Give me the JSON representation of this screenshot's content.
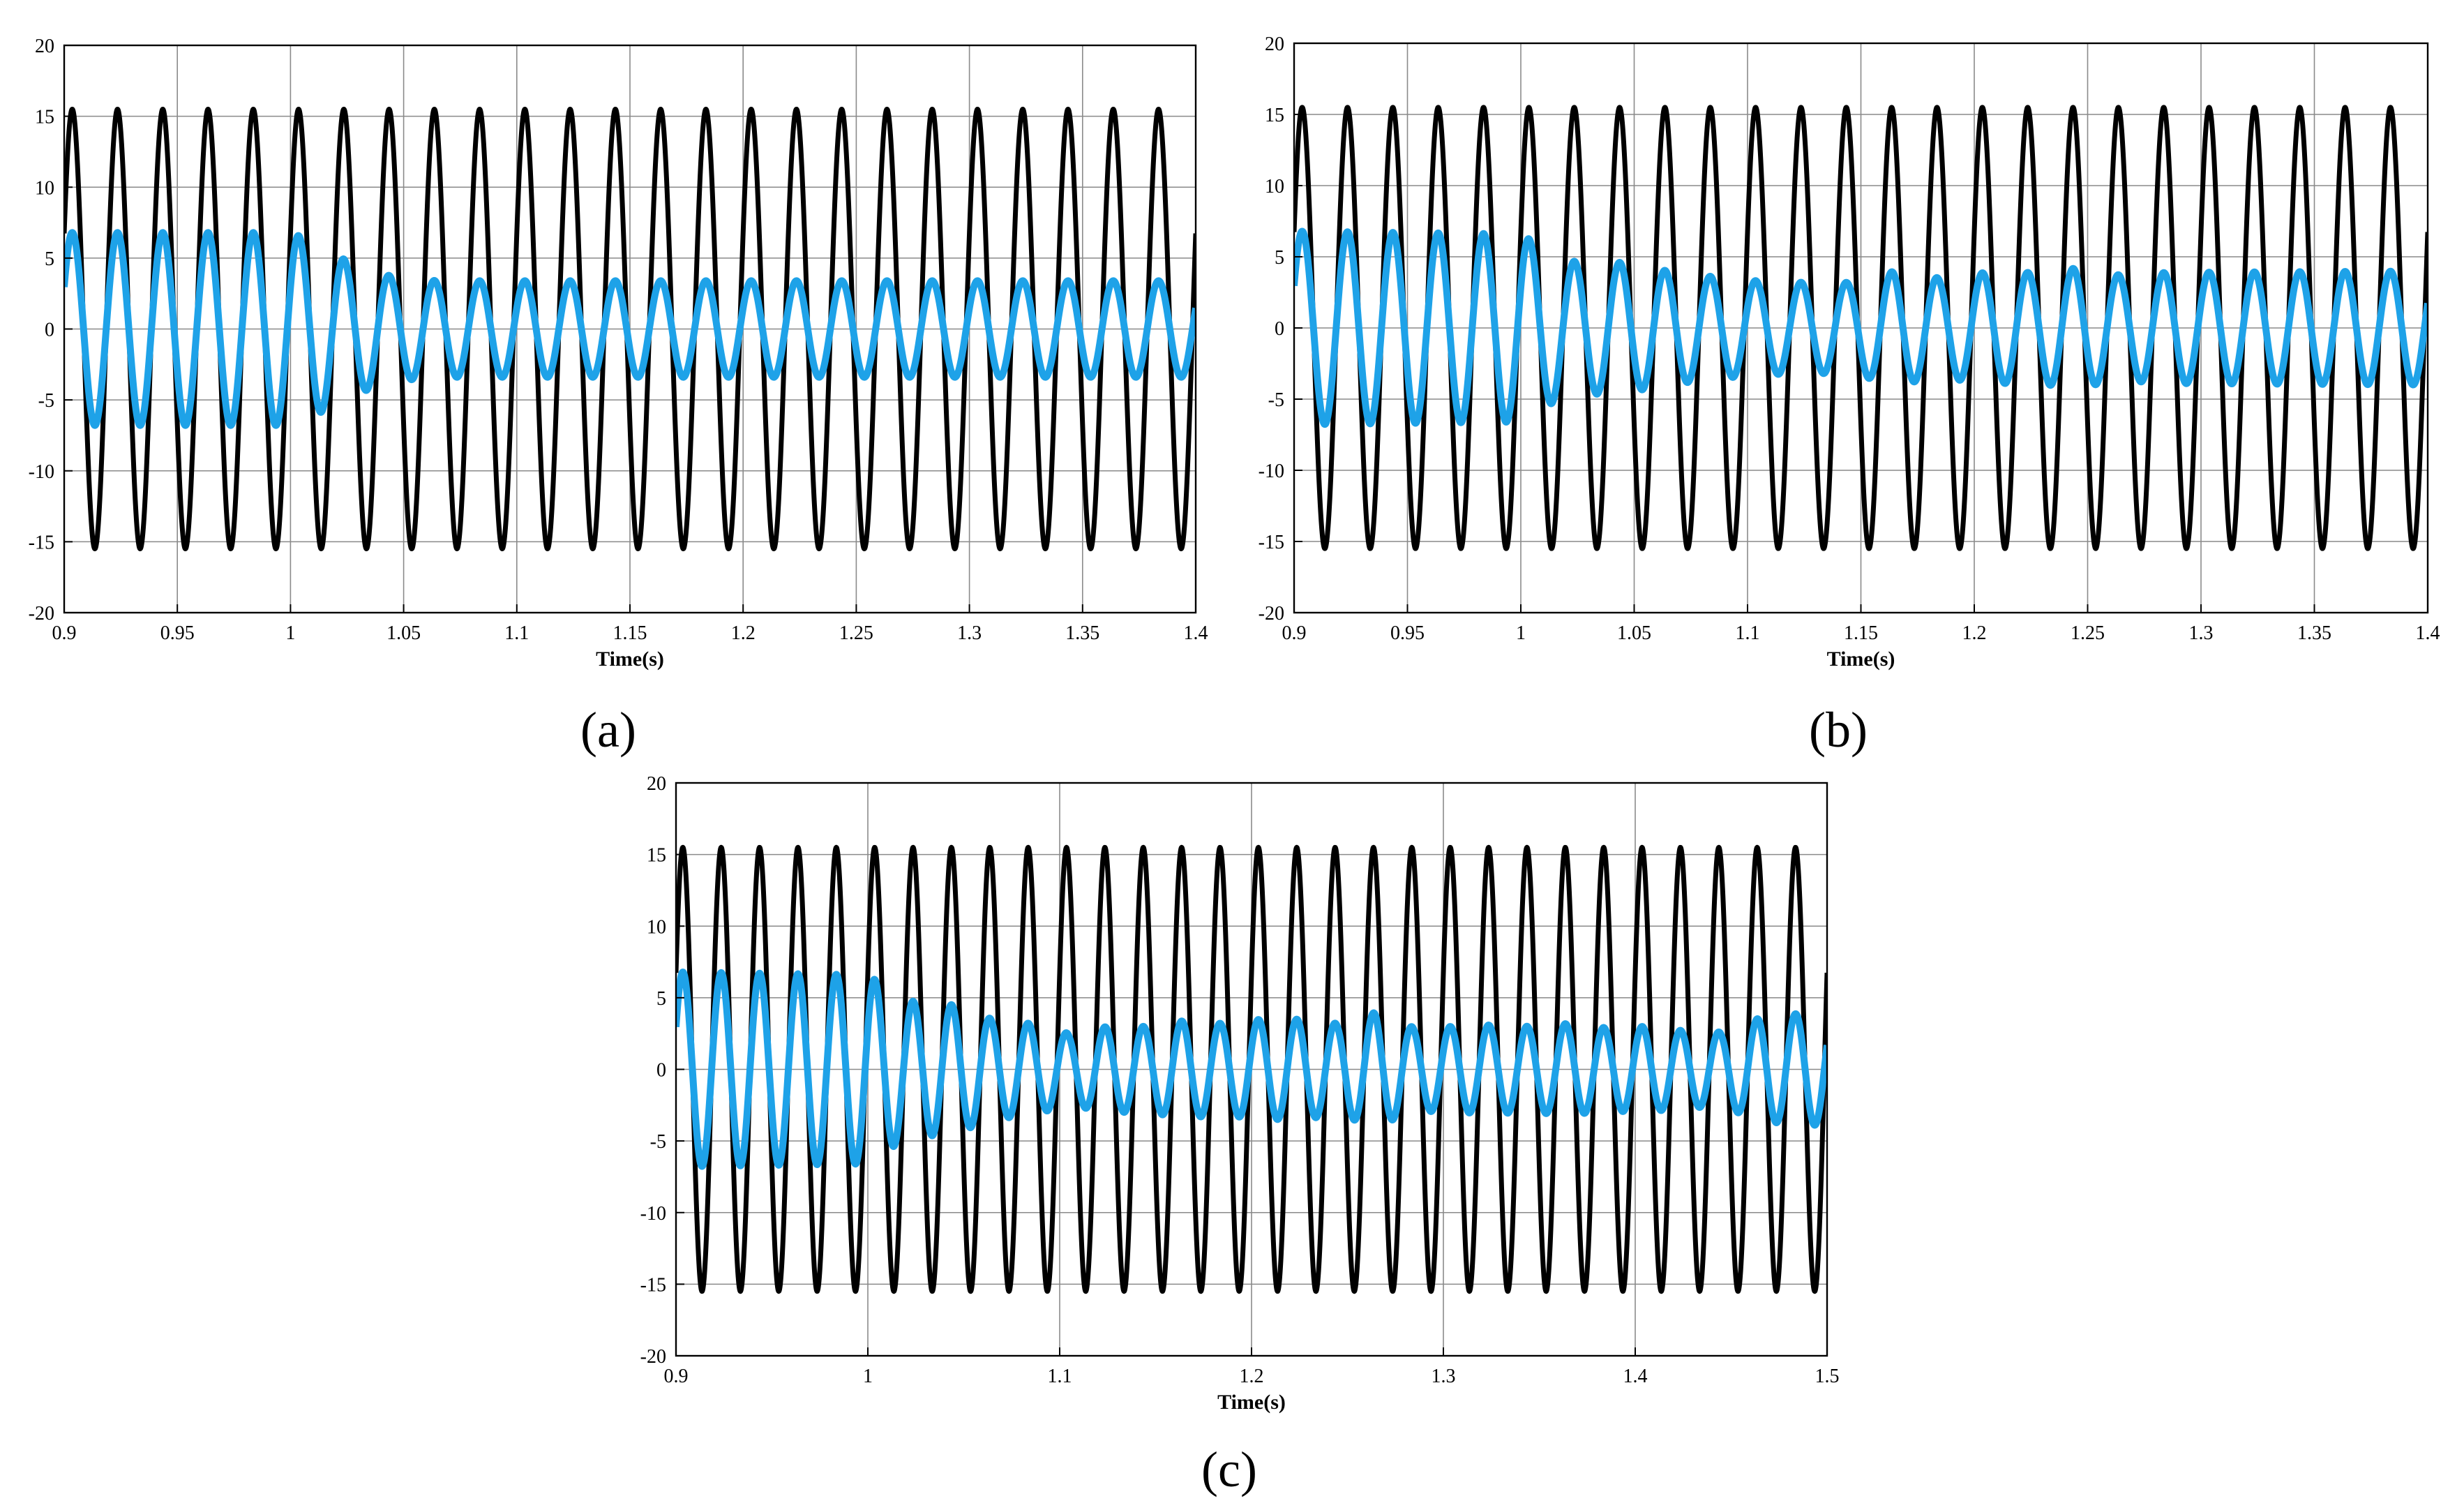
{
  "figure": {
    "line_colors": {
      "series_1": "#000000",
      "series_2": "#1ea2e8"
    },
    "grid_color": "#8a8a8a"
  },
  "chart_data": [
    {
      "panel_label": "(a)",
      "type": "line",
      "title": "",
      "xlabel": "Time(s)",
      "ylabel": "",
      "xlim": [
        0.9,
        1.4
      ],
      "ylim": [
        -20,
        20
      ],
      "xticks": [
        0.9,
        0.95,
        1,
        1.05,
        1.1,
        1.15,
        1.2,
        1.25,
        1.3,
        1.35,
        1.4
      ],
      "xtick_labels": [
        "0.9",
        "0.95",
        "1",
        "1.05",
        "1.1",
        "1.15",
        "1.2",
        "1.25",
        "1.3",
        "1.35",
        "1.4"
      ],
      "yticks": [
        -20,
        -15,
        -10,
        -5,
        0,
        5,
        10,
        15,
        20
      ],
      "ytick_labels": [
        "-20",
        "-15",
        "-10",
        "-5",
        "0",
        "5",
        "10",
        "15",
        "20"
      ],
      "grid": true,
      "series": [
        {
          "name": "black waveform",
          "color": "#000000",
          "frequency_hz": 50,
          "amplitude": 15.5
        },
        {
          "name": "blue waveform",
          "color": "#1ea2e8",
          "frequency_hz": 50,
          "amplitude_profile": {
            "t": [
              0.9,
              1.0,
              1.01,
              1.025,
              1.045,
              1.065,
              1.4
            ],
            "amp": [
              6.8,
              6.8,
              6.2,
              4.8,
              3.7,
              3.4,
              3.4
            ]
          }
        }
      ]
    },
    {
      "panel_label": "(b)",
      "type": "line",
      "title": "",
      "xlabel": "Time(s)",
      "ylabel": "",
      "xlim": [
        0.9,
        1.4
      ],
      "ylim": [
        -20,
        20
      ],
      "xticks": [
        0.9,
        0.95,
        1,
        1.05,
        1.1,
        1.15,
        1.2,
        1.25,
        1.3,
        1.35,
        1.4
      ],
      "xtick_labels": [
        "0.9",
        "0.95",
        "1",
        "1.05",
        "1.1",
        "1.15",
        "1.2",
        "1.25",
        "1.3",
        "1.35",
        "1.4"
      ],
      "yticks": [
        -20,
        -15,
        -10,
        -5,
        0,
        5,
        10,
        15,
        20
      ],
      "ytick_labels": [
        "-20",
        "-15",
        "-10",
        "-5",
        "0",
        "5",
        "10",
        "15",
        "20"
      ],
      "grid": true,
      "series": [
        {
          "name": "black waveform",
          "color": "#000000",
          "frequency_hz": 50,
          "amplitude": 15.5
        },
        {
          "name": "blue waveform",
          "color": "#1ea2e8",
          "frequency_hz": 50,
          "amplitude_profile": {
            "t": [
              0.9,
              1.0,
              1.02,
              1.045,
              1.065,
              1.085,
              1.105,
              1.125,
              1.145,
              1.165,
              1.185,
              1.205,
              1.225,
              1.245,
              1.265,
              1.285,
              1.4
            ],
            "amp": [
              6.8,
              6.6,
              4.7,
              4.6,
              4.0,
              3.6,
              3.3,
              3.2,
              3.2,
              4.0,
              3.5,
              3.9,
              3.9,
              4.2,
              3.7,
              3.9,
              4.0
            ]
          }
        }
      ]
    },
    {
      "panel_label": "(c)",
      "type": "line",
      "title": "",
      "xlabel": "Time(s)",
      "ylabel": "",
      "xlim": [
        0.9,
        1.5
      ],
      "ylim": [
        -20,
        20
      ],
      "xticks": [
        0.9,
        1.0,
        1.1,
        1.2,
        1.3,
        1.4,
        1.5
      ],
      "xtick_labels": [
        "0.9",
        "1",
        "1.1",
        "1.2",
        "1.3",
        "1.4",
        "1.5"
      ],
      "yticks": [
        -20,
        -15,
        -10,
        -5,
        0,
        5,
        10,
        15,
        20
      ],
      "ytick_labels": [
        "-20",
        "-15",
        "-10",
        "-5",
        "0",
        "5",
        "10",
        "15",
        "20"
      ],
      "grid": true,
      "series": [
        {
          "name": "black waveform",
          "color": "#000000",
          "frequency_hz": 50,
          "amplitude": 15.5
        },
        {
          "name": "blue waveform",
          "color": "#1ea2e8",
          "frequency_hz": 50,
          "amplitude_profile": {
            "t": [
              0.9,
              1.0,
              1.02,
              1.045,
              1.065,
              1.085,
              1.105,
              1.125,
              1.145,
              1.165,
              1.185,
              1.205,
              1.225,
              1.245,
              1.265,
              1.285,
              1.305,
              1.325,
              1.345,
              1.365,
              1.385,
              1.405,
              1.425,
              1.445,
              1.465,
              1.485,
              1.5
            ],
            "amp": [
              6.8,
              6.6,
              4.8,
              4.5,
              3.5,
              3.2,
              2.5,
              3.0,
              3.0,
              3.4,
              3.2,
              3.5,
              3.5,
              3.2,
              4.0,
              2.9,
              3.0,
              3.1,
              3.0,
              3.2,
              2.9,
              3.0,
              2.7,
              2.6,
              3.6,
              3.9,
              3.9
            ]
          }
        }
      ]
    }
  ]
}
